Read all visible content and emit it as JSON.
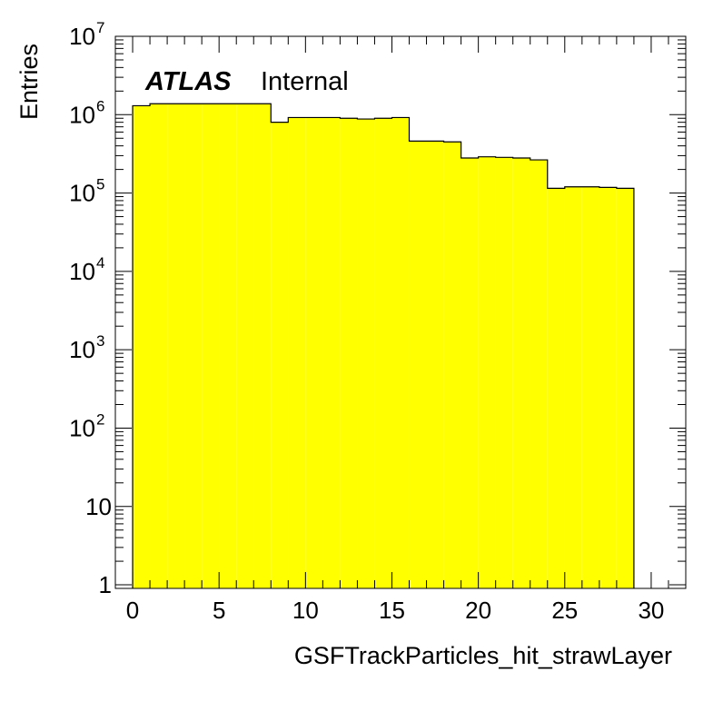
{
  "chart_data": {
    "type": "bar",
    "xlabel": "GSFTrackParticles_hit_strawLayer",
    "ylabel": "Entries",
    "xlim": [
      -1,
      32
    ],
    "ylim": [
      0.9,
      10000000
    ],
    "log_y": true,
    "grid": false,
    "legend": "none",
    "fill_color": "#ffff00",
    "edge_color": "#000000",
    "bin_width": 1,
    "bins": [
      {
        "x": 0,
        "y": 1300000
      },
      {
        "x": 1,
        "y": 1380000
      },
      {
        "x": 2,
        "y": 1380000
      },
      {
        "x": 3,
        "y": 1380000
      },
      {
        "x": 4,
        "y": 1380000
      },
      {
        "x": 5,
        "y": 1380000
      },
      {
        "x": 6,
        "y": 1380000
      },
      {
        "x": 7,
        "y": 1380000
      },
      {
        "x": 8,
        "y": 800000
      },
      {
        "x": 9,
        "y": 920000
      },
      {
        "x": 10,
        "y": 920000
      },
      {
        "x": 11,
        "y": 920000
      },
      {
        "x": 12,
        "y": 900000
      },
      {
        "x": 13,
        "y": 880000
      },
      {
        "x": 14,
        "y": 900000
      },
      {
        "x": 15,
        "y": 920000
      },
      {
        "x": 16,
        "y": 460000
      },
      {
        "x": 17,
        "y": 460000
      },
      {
        "x": 18,
        "y": 450000
      },
      {
        "x": 19,
        "y": 280000
      },
      {
        "x": 20,
        "y": 290000
      },
      {
        "x": 21,
        "y": 285000
      },
      {
        "x": 22,
        "y": 280000
      },
      {
        "x": 23,
        "y": 265000
      },
      {
        "x": 24,
        "y": 115000
      },
      {
        "x": 25,
        "y": 120000
      },
      {
        "x": 26,
        "y": 120000
      },
      {
        "x": 27,
        "y": 118000
      },
      {
        "x": 28,
        "y": 115000
      }
    ],
    "x_ticks": [
      "0",
      "5",
      "10",
      "15",
      "20",
      "25",
      "30"
    ],
    "x_tick_values": [
      0,
      5,
      10,
      15,
      20,
      25,
      30
    ],
    "y_ticks": [
      {
        "value": 1,
        "base": "1",
        "exp": ""
      },
      {
        "value": 10,
        "base": "10",
        "exp": ""
      },
      {
        "value": 100,
        "base": "10",
        "exp": "2"
      },
      {
        "value": 1000,
        "base": "10",
        "exp": "3"
      },
      {
        "value": 10000,
        "base": "10",
        "exp": "4"
      },
      {
        "value": 100000,
        "base": "10",
        "exp": "5"
      },
      {
        "value": 1000000,
        "base": "10",
        "exp": "6"
      },
      {
        "value": 10000000,
        "base": "10",
        "exp": "7"
      }
    ],
    "annotations": {
      "experiment": "ATLAS",
      "status": "Internal"
    }
  }
}
